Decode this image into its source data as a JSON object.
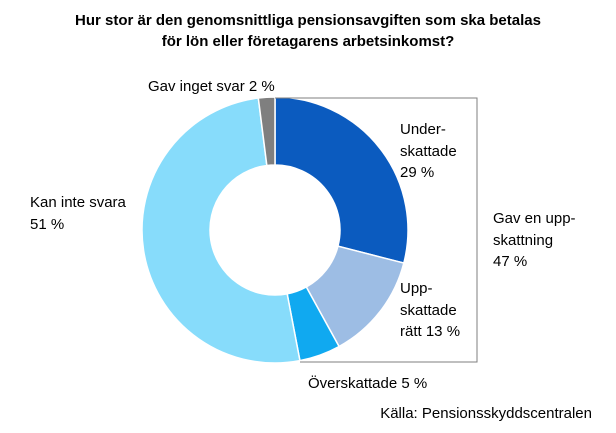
{
  "chart_data": {
    "type": "pie",
    "donut": true,
    "title_lines": [
      "Hur stor är den genomsnittliga pensionsavgiften som ska betalas",
      "för lön eller företagarens arbetsinkomst?"
    ],
    "slices": [
      {
        "label_lines": [
          "Under-",
          "skattade",
          "29 %"
        ],
        "value": 29,
        "color": "#0b5bbf"
      },
      {
        "label_lines": [
          "Upp-",
          "skattade",
          "rätt 13 %"
        ],
        "value": 13,
        "color": "#9dbde4"
      },
      {
        "label_lines": [
          "Överskattade 5 %"
        ],
        "value": 5,
        "color": "#10a9f0"
      },
      {
        "label_lines": [
          "Kan inte svara",
          "51 %"
        ],
        "value": 51,
        "color": "#87dcfb"
      },
      {
        "label_lines": [
          "Gav inget svar 2 %"
        ],
        "value": 2,
        "color": "#7f7f7f"
      }
    ],
    "group_label_lines": [
      "Gav en upp-",
      "skattning",
      "47 %"
    ],
    "source": "Källa: Pensionsskyddscentralen"
  }
}
